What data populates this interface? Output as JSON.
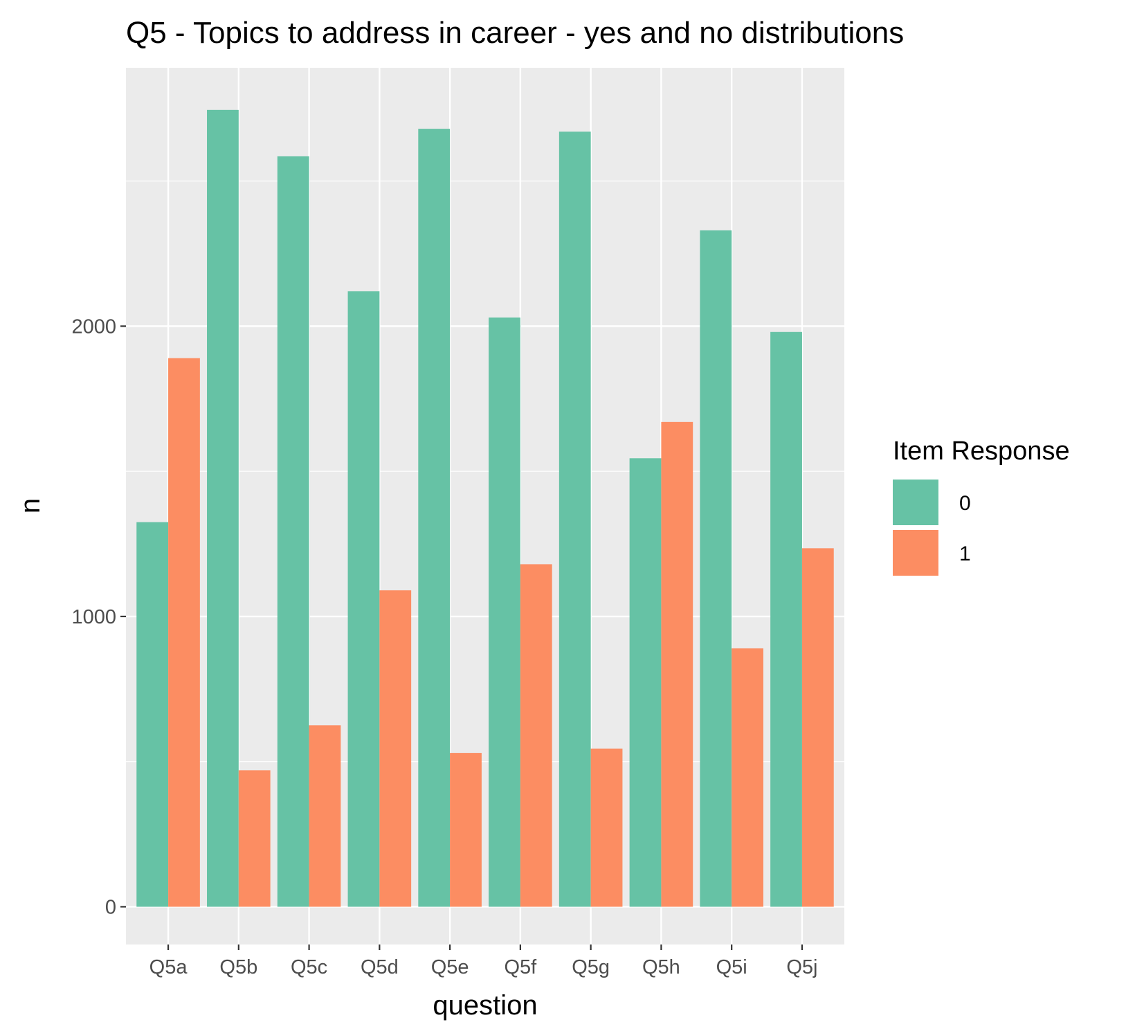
{
  "chart_data": {
    "type": "bar",
    "title": "Q5  - Topics to address in career - yes and no distributions",
    "xlabel": "question",
    "ylabel": "n",
    "categories": [
      "Q5a",
      "Q5b",
      "Q5c",
      "Q5d",
      "Q5e",
      "Q5f",
      "Q5g",
      "Q5h",
      "Q5i",
      "Q5j"
    ],
    "series": [
      {
        "name": "0",
        "color": "#66C2A5",
        "values": [
          1325,
          2745,
          2585,
          2120,
          2680,
          2030,
          2670,
          1545,
          2330,
          1980
        ]
      },
      {
        "name": "1",
        "color": "#FC8D62",
        "values": [
          1890,
          470,
          625,
          1090,
          530,
          1180,
          545,
          1670,
          890,
          1235
        ]
      }
    ],
    "yticks": [
      0,
      1000,
      2000
    ],
    "ylim": [
      -130,
      2890
    ],
    "grid": true,
    "panel_background": "#EBEBEB",
    "legend": {
      "title": "Item Response",
      "placement": "right"
    }
  }
}
